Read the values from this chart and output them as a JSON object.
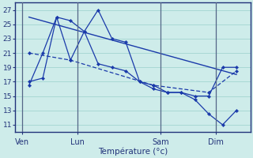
{
  "xlabel": "Température (°c)",
  "background_color": "#ceecea",
  "grid_color": "#a8d8d4",
  "line_color": "#1a3aaa",
  "vline_color": "#556688",
  "day_labels": [
    "Ven",
    "Lun",
    "Sam",
    "Dim"
  ],
  "day_positions": [
    0.5,
    4.5,
    10.5,
    14.5
  ],
  "ylim": [
    10,
    28
  ],
  "yticks": [
    11,
    13,
    15,
    17,
    19,
    21,
    23,
    25,
    27
  ],
  "xlim": [
    0,
    17
  ],
  "num_cols": 17,
  "series_max": {
    "x": [
      1,
      2,
      3,
      4,
      5,
      6,
      7,
      8,
      9,
      10,
      11,
      12,
      13,
      14,
      15,
      16
    ],
    "y": [
      17.0,
      17.5,
      26.0,
      25.5,
      24.0,
      27.0,
      23.0,
      22.5,
      17.0,
      16.5,
      15.5,
      15.5,
      15.0,
      15.0,
      19.0,
      19.0
    ]
  },
  "series_min": {
    "x": [
      1,
      2,
      3,
      4,
      5,
      6,
      7,
      8,
      9,
      10,
      11,
      12,
      13,
      14,
      15,
      16
    ],
    "y": [
      16.5,
      21.0,
      26.0,
      20.0,
      24.0,
      19.5,
      19.0,
      18.5,
      17.0,
      16.0,
      15.5,
      15.5,
      14.5,
      12.5,
      11.0,
      13.0
    ]
  },
  "series_avg": {
    "x": [
      1,
      4,
      10,
      14,
      16
    ],
    "y": [
      21.0,
      20.0,
      16.5,
      15.5,
      18.5
    ]
  },
  "series_trend": {
    "x": [
      1,
      16
    ],
    "y": [
      26.0,
      18.0
    ]
  }
}
